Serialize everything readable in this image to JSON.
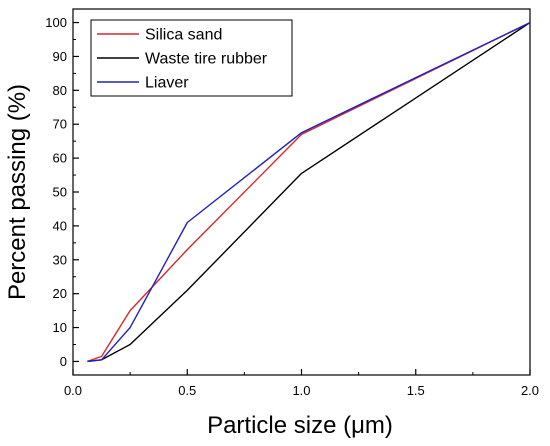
{
  "chart_data": {
    "type": "line",
    "xlabel": "Particle size (μm)",
    "ylabel": "Percent passing (%)",
    "xlim": [
      0.0,
      2.0
    ],
    "ylim": [
      -4,
      104
    ],
    "x_ticks": [
      0.0,
      0.5,
      1.0,
      1.5,
      2.0
    ],
    "x_tick_labels": [
      "0.0",
      "0.5",
      "1.0",
      "1.5",
      "2.0"
    ],
    "y_ticks": [
      0,
      10,
      20,
      30,
      40,
      50,
      60,
      70,
      80,
      90,
      100
    ],
    "y_tick_labels": [
      "0",
      "10",
      "20",
      "30",
      "40",
      "50",
      "60",
      "70",
      "80",
      "90",
      "100"
    ],
    "grid": false,
    "legend_position": "top-left",
    "series": [
      {
        "name": "Silica sand",
        "color": "#d62728",
        "x": [
          0.063,
          0.125,
          0.25,
          0.5,
          1.0,
          2.0
        ],
        "y": [
          0,
          1.5,
          15,
          33,
          67,
          100
        ]
      },
      {
        "name": "Waste tire rubber",
        "color": "#000000",
        "x": [
          0.063,
          0.125,
          0.25,
          0.5,
          1.0,
          2.0
        ],
        "y": [
          0,
          0.5,
          5,
          21,
          55.5,
          100
        ]
      },
      {
        "name": "Liaver",
        "color": "#2020c0",
        "x": [
          0.063,
          0.125,
          0.25,
          0.5,
          1.0,
          2.0
        ],
        "y": [
          0,
          0.5,
          10,
          41,
          67.5,
          100
        ]
      }
    ]
  }
}
